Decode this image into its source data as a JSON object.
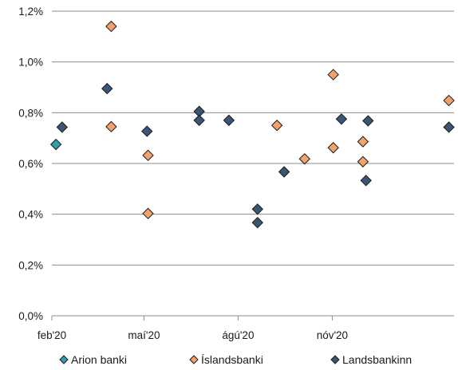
{
  "chart_data": {
    "type": "scatter",
    "title": "",
    "xlabel": "",
    "ylabel": "",
    "x_ticks": [
      "feb'20",
      "maí'20",
      "ágú'20",
      "nóv'20"
    ],
    "x_tick_dates": [
      "2020-02-01",
      "2020-05-01",
      "2020-08-01",
      "2020-11-01"
    ],
    "xlim": [
      "2020-02-01",
      "2021-02-28"
    ],
    "y_ticks": [
      "0,0%",
      "0,2%",
      "0,4%",
      "0,6%",
      "0,8%",
      "1,0%",
      "1,2%"
    ],
    "y_tick_values": [
      0,
      0.2,
      0.4,
      0.6,
      0.8,
      1.0,
      1.2
    ],
    "ylim": [
      0,
      1.2
    ],
    "y_unit": "%",
    "grid": "horizontal",
    "legend_position": "bottom",
    "series": [
      {
        "name": "Arion banki",
        "color": "#2aa3a8",
        "marker": "diamond",
        "points": [
          {
            "x": "2020-02-05",
            "y": 0.675
          }
        ]
      },
      {
        "name": "Íslandsbanki",
        "color": "#f2a26a",
        "marker": "diamond",
        "points": [
          {
            "x": "2020-03-30",
            "y": 1.14
          },
          {
            "x": "2020-03-30",
            "y": 0.745
          },
          {
            "x": "2020-05-05",
            "y": 0.632
          },
          {
            "x": "2020-05-05",
            "y": 0.403
          },
          {
            "x": "2020-09-08",
            "y": 0.75
          },
          {
            "x": "2020-10-05",
            "y": 0.618
          },
          {
            "x": "2020-11-02",
            "y": 0.95
          },
          {
            "x": "2020-11-02",
            "y": 0.662
          },
          {
            "x": "2020-12-01",
            "y": 0.686
          },
          {
            "x": "2020-12-01",
            "y": 0.607
          },
          {
            "x": "2021-02-23",
            "y": 0.848
          }
        ]
      },
      {
        "name": "Landsbankinn",
        "color": "#3b5576",
        "marker": "diamond",
        "points": [
          {
            "x": "2020-02-11",
            "y": 0.743
          },
          {
            "x": "2020-03-26",
            "y": 0.895
          },
          {
            "x": "2020-05-04",
            "y": 0.727
          },
          {
            "x": "2020-06-24",
            "y": 0.805
          },
          {
            "x": "2020-06-24",
            "y": 0.77
          },
          {
            "x": "2020-07-23",
            "y": 0.77
          },
          {
            "x": "2020-08-20",
            "y": 0.42
          },
          {
            "x": "2020-08-20",
            "y": 0.367
          },
          {
            "x": "2020-09-15",
            "y": 0.567
          },
          {
            "x": "2020-11-10",
            "y": 0.775
          },
          {
            "x": "2020-12-04",
            "y": 0.533
          },
          {
            "x": "2020-12-06",
            "y": 0.768
          },
          {
            "x": "2021-02-23",
            "y": 0.743
          }
        ]
      }
    ]
  }
}
